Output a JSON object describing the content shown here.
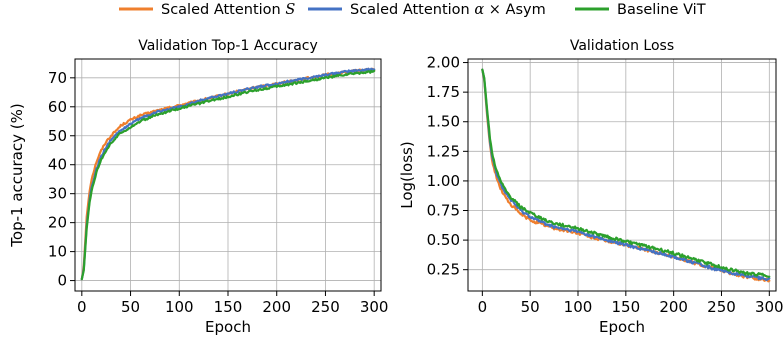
{
  "legend": [
    {
      "label": "Scaled Attention",
      "label_math": "S",
      "color": "#ef7f2d"
    },
    {
      "label": "Scaled Attention",
      "label_math": "α × ",
      "label_tail": "Asym",
      "color": "#4472c4"
    },
    {
      "label": "Baseline ViT",
      "label_math": "",
      "color": "#2ca02c"
    }
  ],
  "chart_data": [
    {
      "type": "line",
      "title": "Validation Top-1 Accuracy",
      "xlabel": "Epoch",
      "ylabel": "Top-1 accuracy (%)",
      "xlim": [
        -7,
        307
      ],
      "ylim": [
        -3.6,
        76.5
      ],
      "xticks": [
        0,
        50,
        100,
        150,
        200,
        250,
        300
      ],
      "yticks": [
        0,
        10,
        20,
        30,
        40,
        50,
        60,
        70
      ],
      "xtick_labels": [
        "0",
        "50",
        "100",
        "150",
        "200",
        "250",
        "300"
      ],
      "ytick_labels": [
        "0",
        "10",
        "20",
        "30",
        "40",
        "50",
        "60",
        "70"
      ],
      "grid": true,
      "series": [
        {
          "name": "Scaled Attention S",
          "color": "#ef7f2d",
          "x": [
            0,
            2,
            5,
            8,
            10,
            15,
            20,
            25,
            30,
            40,
            50,
            60,
            75,
            100,
            125,
            150,
            175,
            200,
            225,
            250,
            275,
            300
          ],
          "y": [
            0.5,
            5,
            22,
            31,
            35,
            41,
            45,
            48,
            50,
            53.5,
            55.5,
            57,
            58.5,
            60.5,
            62.5,
            64.5,
            66.5,
            68,
            69.5,
            71,
            72.2,
            73
          ]
        },
        {
          "name": "Scaled Attention α × Asym",
          "color": "#4472c4",
          "x": [
            0,
            2,
            5,
            8,
            10,
            15,
            20,
            25,
            30,
            40,
            50,
            60,
            75,
            100,
            125,
            150,
            175,
            200,
            225,
            250,
            275,
            300
          ],
          "y": [
            0.5,
            4,
            19,
            28,
            32,
            38.5,
            43,
            46,
            48.5,
            52,
            54,
            56,
            58,
            60,
            62.5,
            64.5,
            66.5,
            68,
            69.5,
            71,
            72.3,
            73
          ]
        },
        {
          "name": "Baseline ViT",
          "color": "#2ca02c",
          "x": [
            0,
            2,
            5,
            8,
            10,
            15,
            20,
            25,
            30,
            40,
            50,
            60,
            75,
            100,
            125,
            150,
            175,
            200,
            225,
            250,
            275,
            300
          ],
          "y": [
            0.5,
            3.5,
            18,
            27,
            31,
            37.5,
            42,
            45,
            47.5,
            51,
            53,
            55,
            57,
            59.5,
            61.5,
            63.5,
            65.5,
            67,
            68.5,
            70,
            71.3,
            72.2
          ]
        }
      ]
    },
    {
      "type": "line",
      "title": "Validation Loss",
      "xlabel": "Epoch",
      "ylabel": "Log(loss)",
      "xlim": [
        -15,
        307
      ],
      "ylim": [
        0.07,
        2.03
      ],
      "xticks": [
        0,
        50,
        100,
        150,
        200,
        250,
        300
      ],
      "yticks": [
        0.25,
        0.5,
        0.75,
        1.0,
        1.25,
        1.5,
        1.75,
        2.0
      ],
      "xtick_labels": [
        "0",
        "50",
        "100",
        "150",
        "200",
        "250",
        "300"
      ],
      "ytick_labels": [
        "0.25",
        "0.50",
        "0.75",
        "1.00",
        "1.25",
        "1.50",
        "1.75",
        "2.00"
      ],
      "grid": true,
      "series": [
        {
          "name": "Scaled Attention S",
          "color": "#ef7f2d",
          "x": [
            0,
            2,
            5,
            8,
            10,
            15,
            20,
            25,
            30,
            40,
            50,
            60,
            75,
            100,
            125,
            150,
            175,
            200,
            225,
            250,
            275,
            300
          ],
          "y": [
            1.94,
            1.85,
            1.55,
            1.3,
            1.18,
            1.02,
            0.92,
            0.85,
            0.8,
            0.72,
            0.67,
            0.64,
            0.6,
            0.56,
            0.5,
            0.46,
            0.41,
            0.36,
            0.3,
            0.24,
            0.19,
            0.16
          ]
        },
        {
          "name": "Scaled Attention α × Asym",
          "color": "#4472c4",
          "x": [
            0,
            2,
            5,
            8,
            10,
            15,
            20,
            25,
            30,
            40,
            50,
            60,
            75,
            100,
            125,
            150,
            175,
            200,
            225,
            250,
            275,
            300
          ],
          "y": [
            1.94,
            1.86,
            1.58,
            1.34,
            1.22,
            1.06,
            0.96,
            0.89,
            0.84,
            0.75,
            0.7,
            0.66,
            0.61,
            0.57,
            0.51,
            0.46,
            0.41,
            0.36,
            0.3,
            0.24,
            0.2,
            0.17
          ]
        },
        {
          "name": "Baseline ViT",
          "color": "#2ca02c",
          "x": [
            0,
            2,
            5,
            8,
            10,
            15,
            20,
            25,
            30,
            40,
            50,
            60,
            75,
            100,
            125,
            150,
            175,
            200,
            225,
            250,
            275,
            300
          ],
          "y": [
            1.94,
            1.87,
            1.6,
            1.36,
            1.24,
            1.08,
            0.98,
            0.91,
            0.86,
            0.78,
            0.73,
            0.69,
            0.64,
            0.6,
            0.54,
            0.49,
            0.44,
            0.39,
            0.33,
            0.27,
            0.22,
            0.2
          ]
        }
      ]
    }
  ]
}
